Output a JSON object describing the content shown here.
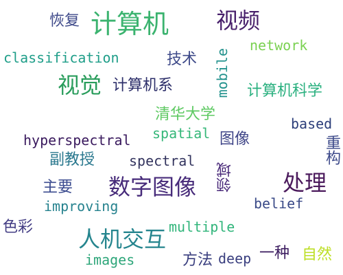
{
  "words": {
    "huifu": {
      "text": "恢复",
      "color": "#3f4a8a"
    },
    "jisuanji": {
      "text": "计算机",
      "color": "#3bb36f"
    },
    "shipin": {
      "text": "视频",
      "color": "#48206b"
    },
    "classification": {
      "text": "classification",
      "color": "#1f9e89"
    },
    "jishu": {
      "text": "技术",
      "color": "#3e4a89"
    },
    "network": {
      "text": "network",
      "color": "#7ad151"
    },
    "mobile": {
      "text": "mobile",
      "color": "#21918c"
    },
    "shijue": {
      "text": "视觉",
      "color": "#2a9d5c"
    },
    "jisuanjixi": {
      "text": "计算机系",
      "color": "#2d2f6a"
    },
    "jisuanjikexue": {
      "text": "计算机科学",
      "color": "#2ab07f"
    },
    "qinghua": {
      "text": "清华大学",
      "color": "#5ec962"
    },
    "spatial": {
      "text": "spatial",
      "color": "#35b779"
    },
    "based": {
      "text": "based",
      "color": "#2c3e7a"
    },
    "hyperspectral": {
      "text": "hyperspectral",
      "color": "#3a1a5e"
    },
    "tuxiang": {
      "text": "图像",
      "color": "#404688"
    },
    "zhonggou": {
      "text": "重构",
      "color": "#3d4a8a"
    },
    "fujiaoshou": {
      "text": "副教授",
      "color": "#2a788e"
    },
    "spectral": {
      "text": "spectral",
      "color": "#33345e"
    },
    "lingyu": {
      "text": "领域",
      "color": "#4a2a7a"
    },
    "zhuyao": {
      "text": "主要",
      "color": "#3b4b8f"
    },
    "shuzituxiang": {
      "text": "数字图像",
      "color": "#472b7a"
    },
    "chuli": {
      "text": "处理",
      "color": "#4b1a5c"
    },
    "improving": {
      "text": "improving",
      "color": "#26828e"
    },
    "belief": {
      "text": "belief",
      "color": "#3b4b88"
    },
    "secai": {
      "text": "色彩",
      "color": "#433d84"
    },
    "renjijiaohu": {
      "text": "人机交互",
      "color": "#25858e"
    },
    "multiple": {
      "text": "multiple",
      "color": "#31b57b"
    },
    "images": {
      "text": "images",
      "color": "#2ea67a"
    },
    "fangfa": {
      "text": "方法",
      "color": "#3a3f7f"
    },
    "deep": {
      "text": "deep",
      "color": "#3a3f7f"
    },
    "yizhong": {
      "text": "一种",
      "color": "#3a1a5e"
    },
    "ziran": {
      "text": "自然",
      "color": "#bddf26"
    }
  }
}
